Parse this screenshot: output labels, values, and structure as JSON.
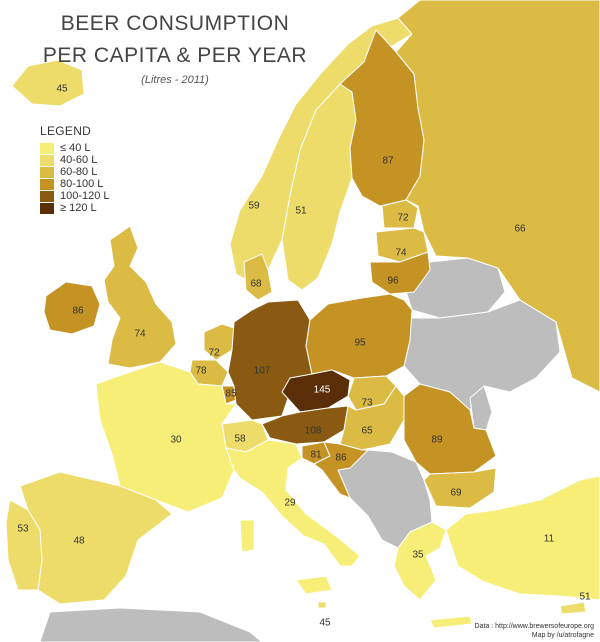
{
  "title_line1": "BEER CONSUMPTION",
  "title_line2": "PER CAPITA & PER YEAR",
  "subtitle": "(Litres - 2011)",
  "legend": {
    "title": "LEGEND",
    "items": [
      {
        "label": "≤ 40 L",
        "color": "#f6ee76"
      },
      {
        "label": "40-60 L",
        "color": "#eedc6a"
      },
      {
        "label": "60-80 L",
        "color": "#dcbb45"
      },
      {
        "label": "80-100 L",
        "color": "#c59224"
      },
      {
        "label": "100-120 L",
        "color": "#8a5a12"
      },
      {
        "label": "≥ 120 L",
        "color": "#5a2f07"
      }
    ]
  },
  "colors": {
    "sea": "#ffffff",
    "no_data": "#bdbdbd",
    "border": "#ffffff"
  },
  "countries": {
    "iceland": {
      "value": "45",
      "bin": 1
    },
    "norway": {
      "value": "59",
      "bin": 1
    },
    "sweden": {
      "value": "51",
      "bin": 1
    },
    "finland": {
      "value": "87",
      "bin": 3
    },
    "russia": {
      "value": "66",
      "bin": 2
    },
    "estonia": {
      "value": "72",
      "bin": 2
    },
    "latvia": {
      "value": "74",
      "bin": 2
    },
    "lithuania": {
      "value": "96",
      "bin": 3
    },
    "ireland": {
      "value": "86",
      "bin": 3
    },
    "uk": {
      "value": "74",
      "bin": 2
    },
    "denmark": {
      "value": "68",
      "bin": 2
    },
    "netherlands": {
      "value": "72",
      "bin": 2
    },
    "belgium": {
      "value": "78",
      "bin": 2
    },
    "luxembourg": {
      "value": "85",
      "bin": 3
    },
    "germany": {
      "value": "107",
      "bin": 4
    },
    "poland": {
      "value": "95",
      "bin": 3
    },
    "czechia": {
      "value": "145",
      "bin": 5
    },
    "slovakia": {
      "value": "73",
      "bin": 2
    },
    "austria": {
      "value": "108",
      "bin": 4
    },
    "hungary": {
      "value": "65",
      "bin": 2
    },
    "romania": {
      "value": "89",
      "bin": 3
    },
    "slovenia": {
      "value": "81",
      "bin": 3
    },
    "croatia": {
      "value": "86",
      "bin": 3
    },
    "bulgaria": {
      "value": "69",
      "bin": 2
    },
    "switzerland": {
      "value": "58",
      "bin": 1
    },
    "france": {
      "value": "30",
      "bin": 0
    },
    "italy": {
      "value": "29",
      "bin": 0
    },
    "spain": {
      "value": "48",
      "bin": 1
    },
    "portugal": {
      "value": "53",
      "bin": 1
    },
    "greece": {
      "value": "35",
      "bin": 0
    },
    "turkey": {
      "value": "11",
      "bin": 0
    },
    "malta": {
      "value": "45",
      "bin": 1
    },
    "cyprus": {
      "value": "51",
      "bin": 1
    }
  },
  "credits": {
    "data": "Data : http://www.brewersofeurope.org",
    "map": "Map by /u/atrofagne"
  }
}
